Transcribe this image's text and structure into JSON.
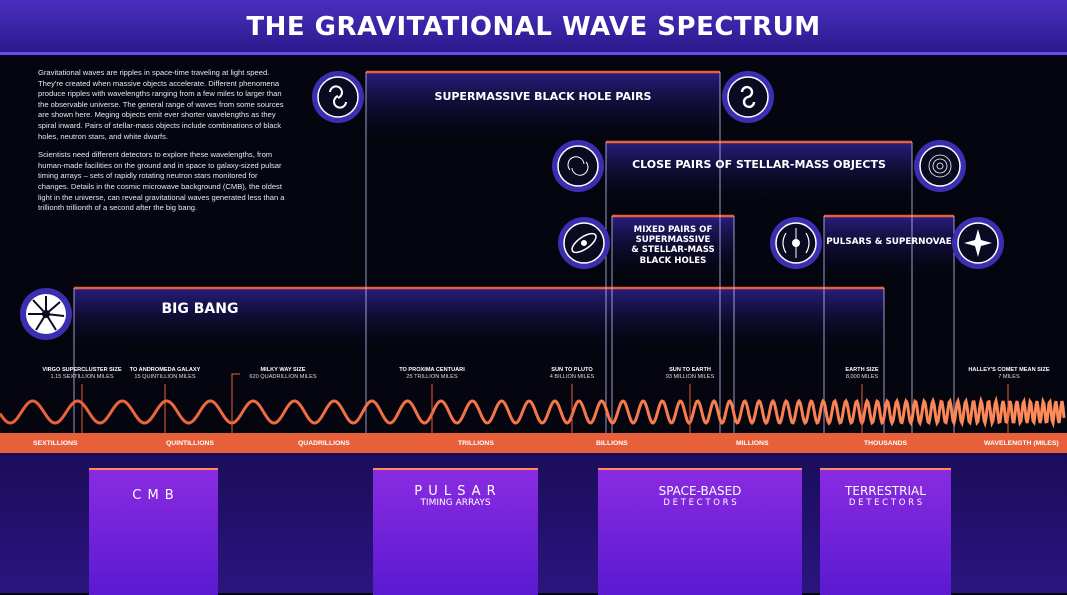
{
  "title": "THE GRAVITATIONAL WAVE SPECTRUM",
  "intro": {
    "p1": "Gravitational waves are ripples in space-time traveling at light speed. They're created when massive objects accelerate. Different phenomena produce ripples with wavelengths ranging from a few miles to larger than the observable universe. The general range of waves from some sources are shown here. Meging objects emit ever shorter wavelengths as they spiral inward. Pairs of stellar-mass objects include combinations of black holes, neutron stars, and white dwarfs.",
    "p2": "Scientists need different detectors to explore these wavelengths, from human-made facilities on the ground and in space to galaxy-sized pulsar timing arrays – sets of rapidly rotating neutron stars monitored for changes. Details in the cosmic microwave background (CMB), the oldest light in the universe, can reveal gravitational waves generated less than a trillionth trillionth of a second after the big bang."
  },
  "sources": {
    "smbh": "SUPERMASSIVE BLACK HOLE PAIRS",
    "stellar": "CLOSE PAIRS OF STELLAR-MASS OBJECTS",
    "mixed_1": "MIXED PAIRS OF",
    "mixed_2": "SUPERMASSIVE",
    "mixed_3": "& STELLAR-MASS",
    "mixed_4": "BLACK HOLES",
    "pulsars": "PULSARS & SUPERNOVAE",
    "bigbang": "BIG BANG"
  },
  "scale": [
    {
      "title": "VIRGO SUPERCLUSTER SIZE",
      "sub": "1.15 SEXTILLION MILES"
    },
    {
      "title": "TO ANDROMEDA GALAXY",
      "sub": "15 QUINTILLION MILES"
    },
    {
      "title": "MILKY WAY SIZE",
      "sub": "620 QUADRILLION MILES"
    },
    {
      "title": "TO PROXIMA CENTUARI",
      "sub": "25 TRILLION MILES"
    },
    {
      "title": "SUN TO PLUTO",
      "sub": "4 BILLION MILES"
    },
    {
      "title": "SUN TO EARTH",
      "sub": "93 MILLION MILES"
    },
    {
      "title": "EARTH SIZE",
      "sub": "8,000 MILES"
    },
    {
      "title": "HALLEY'S COMET MEAN SIZE",
      "sub": "7 MILES"
    }
  ],
  "axis": [
    "SEXTILLIONS",
    "QUINTILLIONS",
    "QUADRILLIONS",
    "TRILLIONS",
    "BILLIONS",
    "MILLIONS",
    "THOUSANDS",
    "WAVELENGTH (MILES)"
  ],
  "detectors": {
    "cmb": "C M B",
    "pta_1": "P U L S A R",
    "pta_2": "TIMING ARRAYS",
    "space_1": "SPACE-BASED",
    "space_2": "D E T E C T O R S",
    "terr_1": "TERRESTRIAL",
    "terr_2": "D E T E C T O R S"
  },
  "colors": {
    "accent": "#e8603a",
    "header": "#2a1a8c",
    "detector": "#7a24e0"
  }
}
